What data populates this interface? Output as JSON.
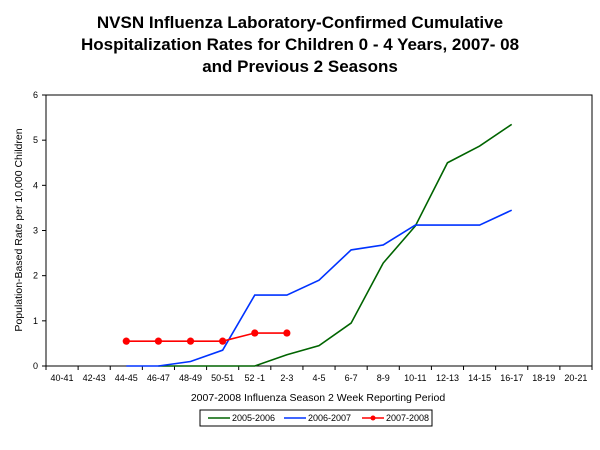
{
  "chart_data": {
    "type": "line",
    "title_lines": [
      "NVSN Influenza Laboratory-Confirmed Cumulative",
      "Hospitalization Rates for Children 0 - 4 Years, 2007- 08",
      "and Previous 2 Seasons"
    ],
    "xlabel": "2007-2008 Influenza Season 2 Week Reporting Period",
    "ylabel": "Population-Based Rate per 10,000 Children",
    "ylim": [
      0,
      6
    ],
    "yticks": [
      "0",
      "1",
      "2",
      "3",
      "4",
      "5",
      "6"
    ],
    "categories": [
      "40-41",
      "42-43",
      "44-45",
      "46-47",
      "48-49",
      "50-51",
      "52 -1",
      "2-3",
      "4-5",
      "6-7",
      "8-9",
      "10-11",
      "12-13",
      "14-15",
      "16-17",
      "18-19",
      "20-21"
    ],
    "grid": false,
    "legend_position": "bottom",
    "series": [
      {
        "name": "2005-2006",
        "color": "#006400",
        "marker": "none",
        "values": [
          null,
          null,
          null,
          0,
          0,
          0,
          0,
          0.25,
          0.45,
          0.95,
          2.28,
          3.1,
          4.5,
          4.87,
          5.35,
          null,
          null
        ]
      },
      {
        "name": "2006-2007",
        "color": "#0033ff",
        "marker": "none",
        "values": [
          null,
          null,
          0,
          0,
          0.1,
          0.35,
          1.57,
          1.57,
          1.9,
          2.57,
          2.68,
          3.12,
          3.12,
          3.12,
          3.45,
          null,
          null
        ]
      },
      {
        "name": "2007-2008",
        "color": "#ff0000",
        "marker": "circle",
        "values": [
          null,
          null,
          0.55,
          0.55,
          0.55,
          0.55,
          0.73,
          0.73,
          null,
          null,
          null,
          null,
          null,
          null,
          null,
          null,
          null
        ]
      }
    ]
  }
}
